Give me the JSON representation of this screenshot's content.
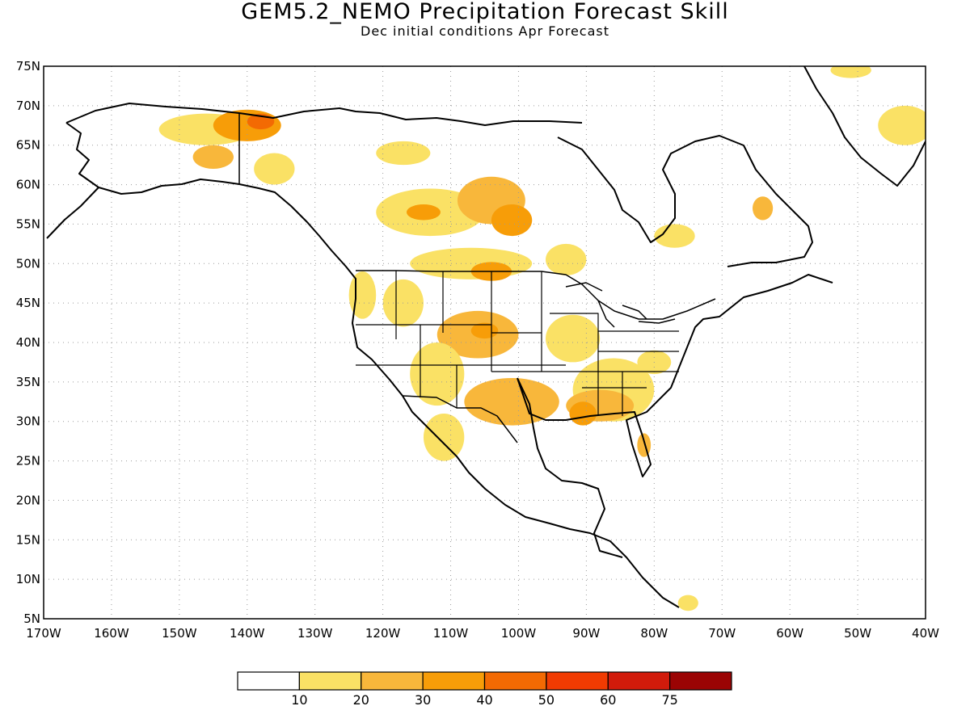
{
  "title": "GEM5.2_NEMO Precipitation Forecast Skill",
  "subtitle": "Dec initial conditions  Apr Forecast",
  "map": {
    "lon_range": [
      -170,
      -40
    ],
    "lat_range": [
      5,
      75
    ],
    "lat_ticks": [
      "75N",
      "70N",
      "65N",
      "60N",
      "55N",
      "50N",
      "45N",
      "40N",
      "35N",
      "30N",
      "25N",
      "20N",
      "15N",
      "10N",
      "5N"
    ],
    "lon_ticks": [
      "170W",
      "160W",
      "150W",
      "140W",
      "130W",
      "120W",
      "110W",
      "100W",
      "90W",
      "80W",
      "70W",
      "60W",
      "50W",
      "40W"
    ],
    "skill_regions": [
      {
        "name": "alaska-north-slope",
        "lon": -146,
        "lat": 67,
        "rx": 7,
        "ry": 2,
        "level": 1
      },
      {
        "name": "alaska-yukon",
        "lon": -140,
        "lat": 67.5,
        "rx": 5,
        "ry": 2,
        "level": 3
      },
      {
        "name": "alaska-yukon-core",
        "lon": -138,
        "lat": 68,
        "rx": 2,
        "ry": 1,
        "level": 4
      },
      {
        "name": "alaska-interior",
        "lon": -145,
        "lat": 63.5,
        "rx": 3,
        "ry": 1.5,
        "level": 2
      },
      {
        "name": "yukon-south",
        "lon": -136,
        "lat": 62,
        "rx": 3,
        "ry": 2,
        "level": 1
      },
      {
        "name": "mackenzie",
        "lon": -117,
        "lat": 64,
        "rx": 4,
        "ry": 1.5,
        "level": 1
      },
      {
        "name": "alberta-north",
        "lon": -113,
        "lat": 56.5,
        "rx": 8,
        "ry": 3,
        "level": 1
      },
      {
        "name": "alberta-core",
        "lon": -114,
        "lat": 56.5,
        "rx": 2.5,
        "ry": 1,
        "level": 3
      },
      {
        "name": "saskatchewan-north",
        "lon": -104,
        "lat": 58,
        "rx": 5,
        "ry": 3,
        "level": 2
      },
      {
        "name": "manitoba-lakes",
        "lon": -101,
        "lat": 55.5,
        "rx": 3,
        "ry": 2,
        "level": 3
      },
      {
        "name": "prairies-south",
        "lon": -107,
        "lat": 50,
        "rx": 9,
        "ry": 2,
        "level": 1
      },
      {
        "name": "north-dakota",
        "lon": -104,
        "lat": 49,
        "rx": 3,
        "ry": 1.2,
        "level": 3
      },
      {
        "name": "ontario-west",
        "lon": -93,
        "lat": 50.5,
        "rx": 3,
        "ry": 2,
        "level": 1
      },
      {
        "name": "pacific-northwest",
        "lon": -123,
        "lat": 46,
        "rx": 2,
        "ry": 3,
        "level": 1
      },
      {
        "name": "idaho-montana",
        "lon": -117,
        "lat": 45,
        "rx": 3,
        "ry": 3,
        "level": 1
      },
      {
        "name": "colorado-kansas",
        "lon": -106,
        "lat": 41,
        "rx": 6,
        "ry": 3,
        "level": 2
      },
      {
        "name": "colorado-core",
        "lon": -105,
        "lat": 41.5,
        "rx": 2,
        "ry": 1,
        "level": 3
      },
      {
        "name": "utah-arizona",
        "lon": -112,
        "lat": 36,
        "rx": 4,
        "ry": 4,
        "level": 1
      },
      {
        "name": "new-mexico-texas",
        "lon": -101,
        "lat": 32.5,
        "rx": 7,
        "ry": 3,
        "level": 2
      },
      {
        "name": "sonora",
        "lon": -111,
        "lat": 28,
        "rx": 3,
        "ry": 3,
        "level": 1
      },
      {
        "name": "midwest",
        "lon": -92,
        "lat": 40.5,
        "rx": 4,
        "ry": 3,
        "level": 1
      },
      {
        "name": "southeast",
        "lon": -86,
        "lat": 34,
        "rx": 6,
        "ry": 4,
        "level": 1
      },
      {
        "name": "gulf-coast",
        "lon": -88,
        "lat": 32,
        "rx": 5,
        "ry": 2,
        "level": 2
      },
      {
        "name": "louisiana-core",
        "lon": -90.5,
        "lat": 31,
        "rx": 2,
        "ry": 1.5,
        "level": 3
      },
      {
        "name": "florida",
        "lon": -81.5,
        "lat": 27,
        "rx": 1,
        "ry": 1.5,
        "level": 2
      },
      {
        "name": "virginia",
        "lon": -80,
        "lat": 37.5,
        "rx": 2.5,
        "ry": 1.5,
        "level": 1
      },
      {
        "name": "hudson-bay-east",
        "lon": -77,
        "lat": 53.5,
        "rx": 3,
        "ry": 1.5,
        "level": 1
      },
      {
        "name": "labrador",
        "lon": -64,
        "lat": 57,
        "rx": 1.5,
        "ry": 1.5,
        "level": 2
      },
      {
        "name": "greenland-east",
        "lon": -43,
        "lat": 67.5,
        "rx": 4,
        "ry": 2.5,
        "level": 1
      },
      {
        "name": "greenland-north",
        "lon": -51,
        "lat": 74.5,
        "rx": 3,
        "ry": 1,
        "level": 1
      },
      {
        "name": "caribbean-south",
        "lon": -75,
        "lat": 7,
        "rx": 1.5,
        "ry": 1,
        "level": 1
      }
    ]
  },
  "colorbar": {
    "labels": [
      "10",
      "20",
      "30",
      "40",
      "50",
      "60",
      "75"
    ],
    "colors": [
      "#ffffff",
      "#fae165",
      "#f8b73b",
      "#f79d08",
      "#f36a03",
      "#f13b02",
      "#d11b0b",
      "#9b0404"
    ]
  },
  "colors": {
    "land_outline": "#000000",
    "grid": "#9a9a9a"
  }
}
